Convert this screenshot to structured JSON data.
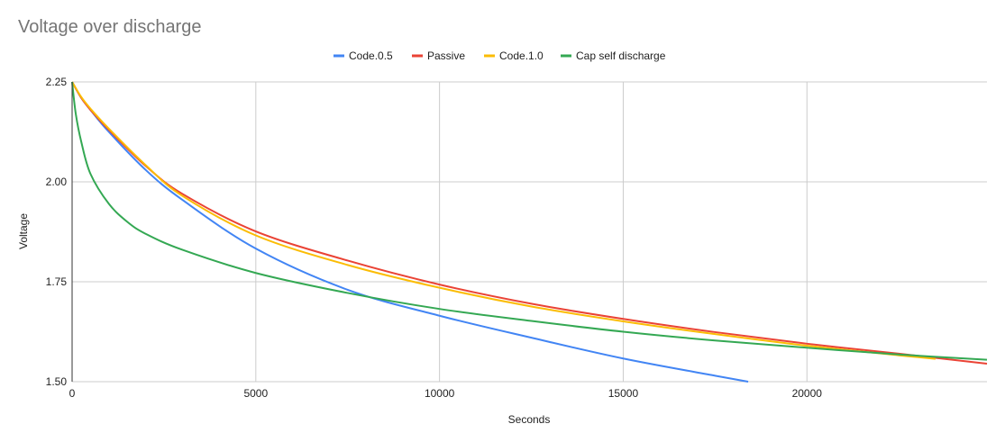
{
  "chart_data": {
    "type": "line",
    "title": "Voltage over discharge",
    "xlabel": "Seconds",
    "ylabel": "Voltage",
    "xlim": [
      0,
      24900
    ],
    "ylim": [
      1.5,
      2.25
    ],
    "xticks": [
      0,
      5000,
      10000,
      15000,
      20000
    ],
    "yticks": [
      "1.50",
      "1.75",
      "2.00",
      "2.25"
    ],
    "grid": true,
    "legend_position": "top",
    "series": [
      {
        "name": "Code.0.5",
        "color": "#4285f4",
        "x": [
          0,
          250,
          500,
          1000,
          2000,
          3000,
          5000,
          7500,
          10000,
          12500,
          15000,
          17500,
          18400
        ],
        "y": [
          2.25,
          2.21,
          2.18,
          2.125,
          2.03,
          1.955,
          1.833,
          1.73,
          1.665,
          1.61,
          1.558,
          1.515,
          1.5
        ]
      },
      {
        "name": "Passive",
        "color": "#ea4335",
        "x": [
          0,
          250,
          500,
          1000,
          2000,
          3000,
          5000,
          7500,
          10000,
          12500,
          15000,
          17500,
          20000,
          22500,
          24900
        ],
        "y": [
          2.25,
          2.21,
          2.18,
          2.13,
          2.04,
          1.97,
          1.876,
          1.803,
          1.743,
          1.695,
          1.657,
          1.624,
          1.595,
          1.57,
          1.545
        ]
      },
      {
        "name": "Code.1.0",
        "color": "#fbbc04",
        "x": [
          0,
          250,
          500,
          1000,
          2000,
          3000,
          5000,
          7500,
          10000,
          12500,
          15000,
          17500,
          20000,
          22500,
          23500
        ],
        "y": [
          2.25,
          2.212,
          2.183,
          2.133,
          2.042,
          1.965,
          1.866,
          1.792,
          1.735,
          1.688,
          1.651,
          1.619,
          1.59,
          1.566,
          1.557
        ]
      },
      {
        "name": "Cap self discharge",
        "color": "#34a853",
        "x": [
          0,
          100,
          250,
          500,
          1000,
          1500,
          2000,
          3000,
          5000,
          7500,
          10000,
          12500,
          15000,
          17500,
          20000,
          22500,
          24900
        ],
        "y": [
          2.25,
          2.17,
          2.1,
          2.02,
          1.945,
          1.9,
          1.87,
          1.83,
          1.772,
          1.722,
          1.682,
          1.652,
          1.625,
          1.603,
          1.585,
          1.568,
          1.555
        ]
      }
    ]
  }
}
